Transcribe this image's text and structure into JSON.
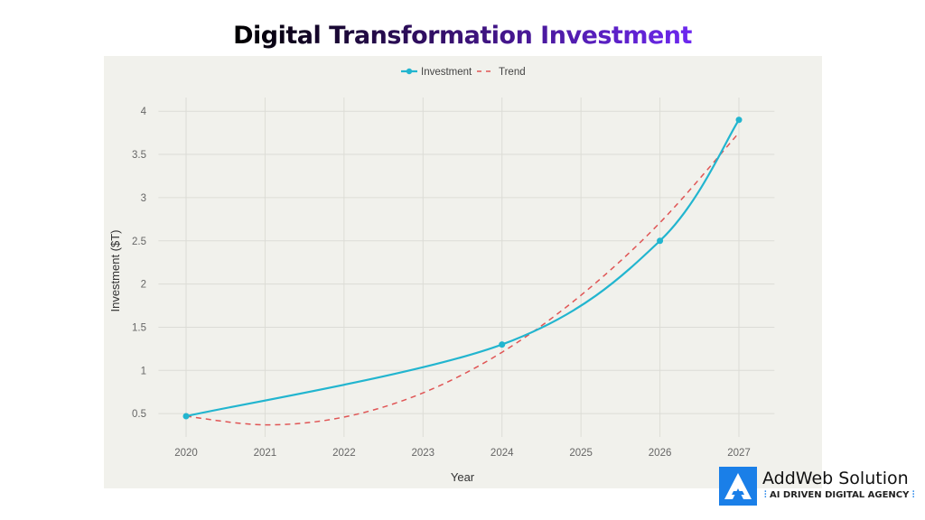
{
  "chart_data": {
    "type": "line",
    "title": "Digital Transformation Investment",
    "xlabel": "Year",
    "ylabel": "Investment ($T)",
    "xlim": [
      2019.65,
      2027.45
    ],
    "ylim": [
      0.2,
      4.15
    ],
    "x_ticks": [
      2020,
      2021,
      2022,
      2023,
      2024,
      2025,
      2026,
      2027
    ],
    "y_ticks": [
      0.5,
      1,
      1.5,
      2,
      2.5,
      3,
      3.5,
      4
    ],
    "grid": true,
    "legend_position": "top-center",
    "series": [
      {
        "name": "Investment",
        "style": "solid-spline-markers",
        "color": "#22b5cf",
        "x": [
          2020,
          2024,
          2026,
          2027
        ],
        "values": [
          0.47,
          1.3,
          2.5,
          3.9
        ]
      },
      {
        "name": "Trend",
        "style": "dashed",
        "color": "#e05555",
        "x": [
          2020,
          2021,
          2022,
          2023,
          2024,
          2025,
          2026,
          2027
        ],
        "values": [
          0.47,
          0.37,
          0.46,
          0.74,
          1.21,
          1.87,
          2.71,
          3.75
        ]
      }
    ]
  },
  "logo": {
    "name": "AddWeb Solution",
    "tagline": "AI DRIVEN DIGITAL AGENCY",
    "color": "#1a7fe8"
  }
}
